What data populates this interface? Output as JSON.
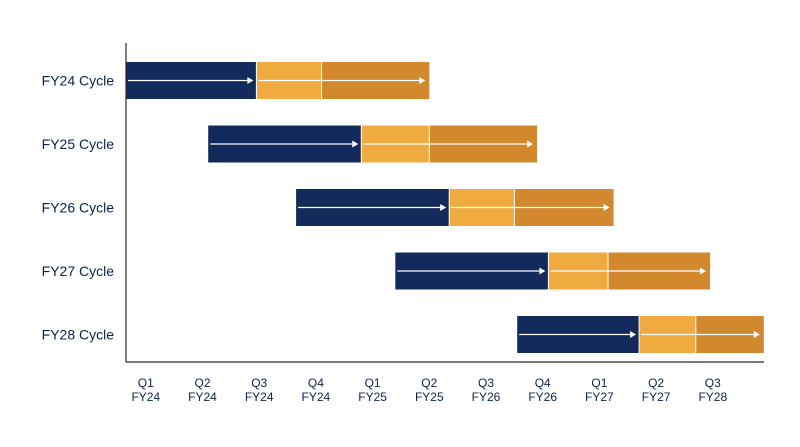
{
  "chart_data": {
    "type": "gantt",
    "title": "",
    "xlabel": "",
    "ylabel": "",
    "grid": false,
    "x_ticks": [
      {
        "quarter": "Q1",
        "year": "FY24"
      },
      {
        "quarter": "Q2",
        "year": "FY24"
      },
      {
        "quarter": "Q3",
        "year": "FY24"
      },
      {
        "quarter": "Q4",
        "year": "FY24"
      },
      {
        "quarter": "Q1",
        "year": "FY25"
      },
      {
        "quarter": "Q2",
        "year": "FY25"
      },
      {
        "quarter": "Q3",
        "year": "FY26"
      },
      {
        "quarter": "Q4",
        "year": "FY26"
      },
      {
        "quarter": "Q1",
        "year": "FY27"
      },
      {
        "quarter": "Q2",
        "year": "FY27"
      },
      {
        "quarter": "Q3",
        "year": "FY28"
      }
    ],
    "colors": {
      "phase1": "#132a5c",
      "phase2": "#efab3f",
      "phase3": "#d2882d",
      "axis": "#2b2b2b",
      "arrow": "#ffffff",
      "text": "#0f2148"
    },
    "rows": [
      {
        "label": "FY24 Cycle",
        "segments": [
          {
            "phase": "phase1",
            "start": 0.0,
            "end": 2.3
          },
          {
            "phase": "phase2",
            "start": 2.3,
            "end": 3.45
          },
          {
            "phase": "phase3",
            "start": 3.45,
            "end": 5.35
          }
        ]
      },
      {
        "label": "FY25 Cycle",
        "segments": [
          {
            "phase": "phase1",
            "start": 1.45,
            "end": 4.15
          },
          {
            "phase": "phase2",
            "start": 4.15,
            "end": 5.35
          },
          {
            "phase": "phase3",
            "start": 5.35,
            "end": 7.25
          }
        ]
      },
      {
        "label": "FY26 Cycle",
        "segments": [
          {
            "phase": "phase1",
            "start": 3.0,
            "end": 5.7
          },
          {
            "phase": "phase2",
            "start": 5.7,
            "end": 6.85
          },
          {
            "phase": "phase3",
            "start": 6.85,
            "end": 8.6
          }
        ]
      },
      {
        "label": "FY27 Cycle",
        "segments": [
          {
            "phase": "phase1",
            "start": 4.75,
            "end": 7.45
          },
          {
            "phase": "phase2",
            "start": 7.45,
            "end": 8.5
          },
          {
            "phase": "phase3",
            "start": 8.5,
            "end": 10.3
          }
        ]
      },
      {
        "label": "FY28 Cycle",
        "segments": [
          {
            "phase": "phase1",
            "start": 6.9,
            "end": 9.05
          },
          {
            "phase": "phase2",
            "start": 9.05,
            "end": 10.05
          },
          {
            "phase": "phase3",
            "start": 10.05,
            "end": 11.25
          }
        ]
      }
    ]
  }
}
